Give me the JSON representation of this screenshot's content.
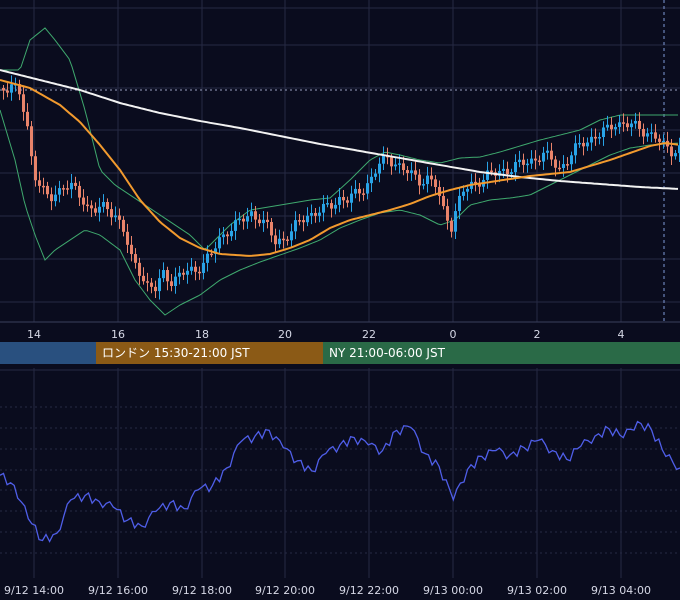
{
  "colors": {
    "background": "#0a0c1e",
    "grid": "#262a44",
    "candle_up": "#29a3e6",
    "candle_down": "#e8836a",
    "bollinger": "#3fa96e",
    "ma_long": "#f2f2f2",
    "ma_mid": "#f29a2e",
    "oscillator": "#4f5ee8",
    "session_tokyo": "#29507f",
    "session_london": "#8b5a16",
    "session_ny": "#2a6a47"
  },
  "sessions": [
    {
      "key": "tokyo",
      "label": ""
    },
    {
      "key": "london",
      "label": "ロンドン 15:30-21:00 JST"
    },
    {
      "key": "ny",
      "label": "NY 21:00-06:00 JST"
    }
  ],
  "chart_data": [
    {
      "type": "candlestick",
      "x_ticks": [
        "14",
        "16",
        "18",
        "20",
        "22",
        "0",
        "2",
        "4"
      ],
      "x_range": [
        "9/12 12:45",
        "9/13 05:15"
      ],
      "overlays": [
        "bollinger-bands",
        "moving-average-long",
        "moving-average-mid"
      ],
      "grid": true,
      "approx_close_series_normalized": [
        0.82,
        0.72,
        0.4,
        0.46,
        0.33,
        0.36,
        0.29,
        0.25,
        0.06,
        0.13,
        0.18,
        0.24,
        0.38,
        0.43,
        0.5,
        0.55,
        0.6,
        0.66,
        0.52,
        0.47,
        0.72,
        0.7,
        0.69,
        0.74,
        0.8,
        0.84,
        0.79,
        0.83,
        0.88,
        0.91,
        0.96,
        0.92,
        0.94,
        0.9,
        0.94,
        0.99,
        0.97
      ]
    },
    {
      "type": "line",
      "series": [
        {
          "values": [
            0.55,
            0.48,
            0.25,
            0.1,
            0.15,
            0.38,
            0.41,
            0.37,
            0.33,
            0.24,
            0.2,
            0.3,
            0.36,
            0.32,
            0.45,
            0.48,
            0.6,
            0.78,
            0.82,
            0.86,
            0.74,
            0.65,
            0.58,
            0.7,
            0.76,
            0.81,
            0.76,
            0.72,
            0.86,
            0.88,
            0.7,
            0.61,
            0.38,
            0.59,
            0.68,
            0.72,
            0.69,
            0.74,
            0.79,
            0.72,
            0.66,
            0.75,
            0.82,
            0.87,
            0.81,
            0.92,
            0.86,
            0.68,
            0.6
          ]
        }
      ],
      "x_ticks": [
        "9/12 14:00",
        "9/12 16:00",
        "9/12 18:00",
        "9/12 20:00",
        "9/12 22:00",
        "9/13 00:00",
        "9/13 02:00",
        "9/13 04:00"
      ],
      "grid": true
    }
  ]
}
